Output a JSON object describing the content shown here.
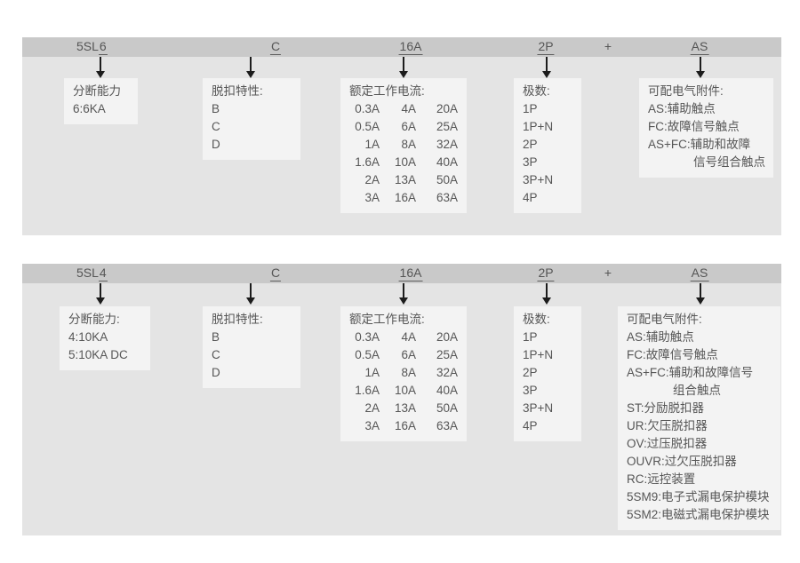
{
  "colors": {
    "page_bg": "#ffffff",
    "header_bar_bg": "#c9c9c9",
    "panel_bg": "#e4e4e4",
    "box_bg": "#f3f3f3",
    "text": "#565656",
    "arrow": "#1c1c1c"
  },
  "panels": [
    {
      "header": {
        "model_prefix": "5SL",
        "model_variant": "6",
        "trip_code": "C",
        "current_code": "16A",
        "poles_code": "2P",
        "plus": "+",
        "accessory_code": "AS"
      },
      "breaking": {
        "title": "分断能力",
        "lines": [
          "6:6KA"
        ]
      },
      "trip": {
        "title": "脱扣特性:",
        "options": [
          "B",
          "C",
          "D"
        ]
      },
      "current": {
        "title": "额定工作电流:",
        "rows": [
          [
            "0.3A",
            "4A",
            "20A"
          ],
          [
            "0.5A",
            "6A",
            "25A"
          ],
          [
            "1A",
            "8A",
            "32A"
          ],
          [
            "1.6A",
            "10A",
            "40A"
          ],
          [
            "2A",
            "13A",
            "50A"
          ],
          [
            "3A",
            "16A",
            "63A"
          ]
        ]
      },
      "poles": {
        "title": "极数:",
        "options": [
          "1P",
          "1P+N",
          "2P",
          "3P",
          "3P+N",
          "4P"
        ]
      },
      "accessories": {
        "title": "可配电气附件:",
        "lines": [
          "AS:辅助触点",
          "FC:故障信号触点",
          "AS+FC:辅助和故障",
          "信号组合触点"
        ]
      }
    },
    {
      "header": {
        "model_prefix": "5SL",
        "model_variant": "4",
        "trip_code": "C",
        "current_code": "16A",
        "poles_code": "2P",
        "plus": "+",
        "accessory_code": "AS"
      },
      "breaking": {
        "title": "分断能力:",
        "lines": [
          "4:10KA",
          "5:10KA DC"
        ]
      },
      "trip": {
        "title": "脱扣特性:",
        "options": [
          "B",
          "C",
          "D"
        ]
      },
      "current": {
        "title": "额定工作电流:",
        "rows": [
          [
            "0.3A",
            "4A",
            "20A"
          ],
          [
            "0.5A",
            "6A",
            "25A"
          ],
          [
            "1A",
            "8A",
            "32A"
          ],
          [
            "1.6A",
            "10A",
            "40A"
          ],
          [
            "2A",
            "13A",
            "50A"
          ],
          [
            "3A",
            "16A",
            "63A"
          ]
        ]
      },
      "poles": {
        "title": "极数:",
        "options": [
          "1P",
          "1P+N",
          "2P",
          "3P",
          "3P+N",
          "4P"
        ]
      },
      "accessories": {
        "title": "可配电气附件:",
        "lines": [
          "AS:辅助触点",
          "FC:故障信号触点",
          "AS+FC:辅助和故障信号",
          "组合触点",
          "ST:分励脱扣器",
          "UR:欠压脱扣器",
          "OV:过压脱扣器",
          "OUVR:过欠压脱扣器",
          "RC:远控装置",
          "5SM9:电子式漏电保护模块",
          "5SM2:电磁式漏电保护模块"
        ]
      }
    }
  ]
}
